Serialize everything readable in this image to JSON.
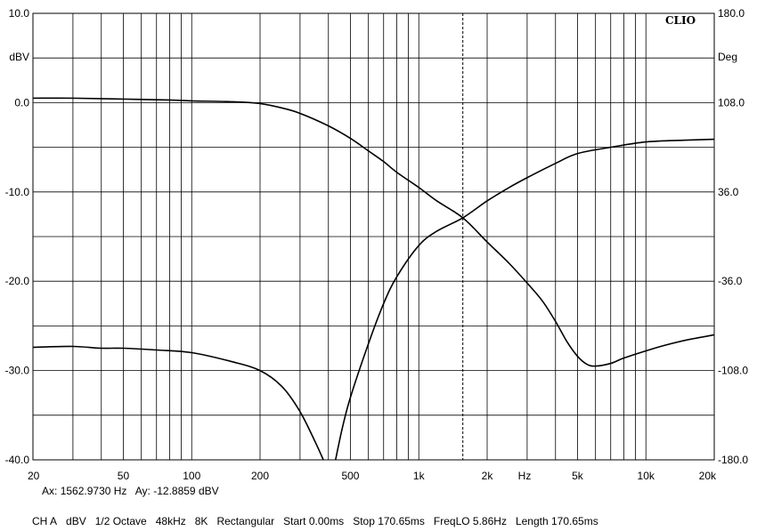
{
  "chart_data": {
    "type": "line",
    "brand": "CLIO",
    "x_scale": "log",
    "x_unit_label": "Hz",
    "xlim": [
      20,
      20000
    ],
    "x_ticks": [
      {
        "value": 20,
        "label": "20"
      },
      {
        "value": 50,
        "label": "50"
      },
      {
        "value": 100,
        "label": "100"
      },
      {
        "value": 200,
        "label": "200"
      },
      {
        "value": 500,
        "label": "500"
      },
      {
        "value": 1000,
        "label": "1k"
      },
      {
        "value": 2000,
        "label": "2k"
      },
      {
        "value": 5000,
        "label": "5k"
      },
      {
        "value": 10000,
        "label": "10k"
      },
      {
        "value": 20000,
        "label": "20k"
      }
    ],
    "y_left": {
      "unit": "dBV",
      "ylim": [
        -40,
        10
      ],
      "ticks": [
        {
          "value": 10,
          "label": "10.0"
        },
        {
          "value": 0,
          "label": "0.0"
        },
        {
          "value": -10,
          "label": "-10.0"
        },
        {
          "value": -20,
          "label": "-20.0"
        },
        {
          "value": -30,
          "label": "-30.0"
        },
        {
          "value": -40,
          "label": "-40.0"
        }
      ]
    },
    "y_right": {
      "unit": "Deg",
      "ylim": [
        -180,
        180
      ],
      "ticks": [
        {
          "value": 180,
          "label": "180.0"
        },
        {
          "value": 108,
          "label": "108.0"
        },
        {
          "value": 36,
          "label": "36.0"
        },
        {
          "value": -36,
          "label": "-36.0"
        },
        {
          "value": -108,
          "label": "-108.0"
        },
        {
          "value": -180,
          "label": "-180.0"
        }
      ]
    },
    "grid": true,
    "cursor": {
      "x": 1562.973,
      "style": "dashed"
    },
    "series": [
      {
        "axis": "left",
        "points": [
          [
            20,
            0.5
          ],
          [
            30,
            0.5
          ],
          [
            50,
            0.4
          ],
          [
            80,
            0.3
          ],
          [
            100,
            0.2
          ],
          [
            150,
            0.1
          ],
          [
            200,
            -0.1
          ],
          [
            250,
            -0.6
          ],
          [
            300,
            -1.2
          ],
          [
            400,
            -2.6
          ],
          [
            500,
            -4.0
          ],
          [
            600,
            -5.4
          ],
          [
            700,
            -6.6
          ],
          [
            800,
            -7.8
          ],
          [
            1000,
            -9.5
          ],
          [
            1200,
            -11.0
          ],
          [
            1562.973,
            -12.9
          ],
          [
            2000,
            -15.6
          ],
          [
            2500,
            -18.0
          ],
          [
            3000,
            -20.2
          ],
          [
            3500,
            -22.2
          ],
          [
            4000,
            -24.5
          ],
          [
            4500,
            -26.8
          ],
          [
            5000,
            -28.4
          ],
          [
            5500,
            -29.3
          ],
          [
            6000,
            -29.5
          ],
          [
            7000,
            -29.2
          ],
          [
            8000,
            -28.6
          ],
          [
            10000,
            -27.8
          ],
          [
            12000,
            -27.2
          ],
          [
            15000,
            -26.6
          ],
          [
            20000,
            -26.0
          ]
        ]
      },
      {
        "axis": "left",
        "points": [
          [
            20,
            -27.4
          ],
          [
            30,
            -27.3
          ],
          [
            40,
            -27.5
          ],
          [
            50,
            -27.5
          ],
          [
            70,
            -27.7
          ],
          [
            100,
            -28.0
          ],
          [
            150,
            -29.0
          ],
          [
            200,
            -30.0
          ],
          [
            250,
            -31.8
          ],
          [
            300,
            -34.6
          ],
          [
            350,
            -38.0
          ],
          [
            380,
            -40.0
          ]
        ]
      },
      {
        "axis": "left",
        "points": [
          [
            430,
            -40.0
          ],
          [
            460,
            -36.5
          ],
          [
            500,
            -33.0
          ],
          [
            600,
            -27.0
          ],
          [
            700,
            -22.5
          ],
          [
            800,
            -19.5
          ],
          [
            1000,
            -16.0
          ],
          [
            1200,
            -14.4
          ],
          [
            1562.973,
            -12.9
          ],
          [
            2000,
            -11.0
          ],
          [
            2500,
            -9.5
          ],
          [
            3000,
            -8.4
          ],
          [
            4000,
            -6.8
          ],
          [
            5000,
            -5.7
          ],
          [
            7000,
            -5.0
          ],
          [
            10000,
            -4.4
          ],
          [
            15000,
            -4.2
          ],
          [
            20000,
            -4.1
          ]
        ]
      }
    ]
  },
  "readout": {
    "ax_label": "Ax:",
    "ax_value": "1562.9730 Hz",
    "ay_label": "Ay:",
    "ay_value": "-12.8859 dBV"
  },
  "status": {
    "items": [
      "CH A",
      "dBV",
      "1/2 Octave",
      "48kHz",
      "8K",
      "Rectangular",
      "Start 0.00ms",
      "Stop 170.65ms",
      "FreqLO 5.86Hz",
      "Length 170.65ms"
    ]
  }
}
